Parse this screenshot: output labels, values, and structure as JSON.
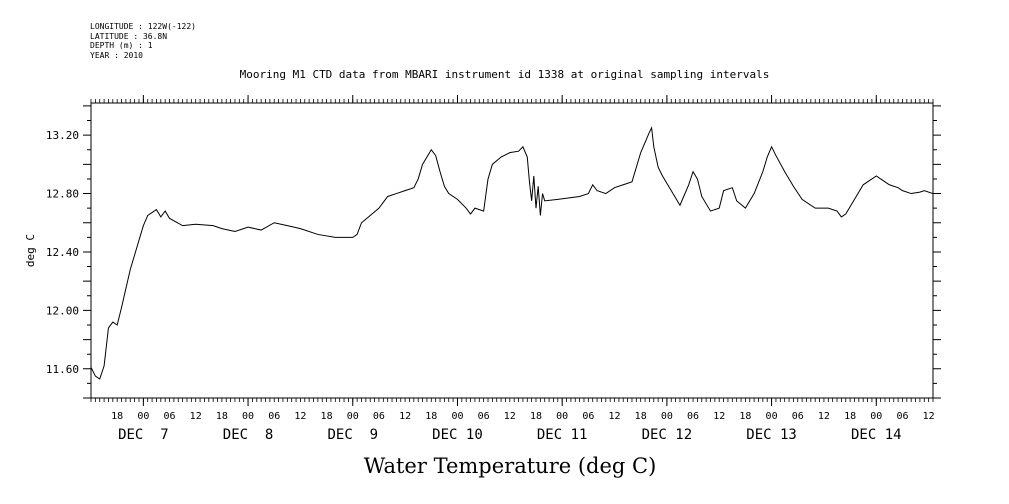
{
  "header": {
    "lines": [
      "LONGITUDE : 122W(-122)",
      "LATITUDE : 36.8N",
      "DEPTH (m) : 1",
      "YEAR : 2010"
    ]
  },
  "chart_data": {
    "type": "line",
    "title": "Mooring M1 CTD data from MBARI instrument id 1338 at original sampling intervals",
    "xlabel": "Water Temperature (deg C)",
    "ylabel": "deg C",
    "ylim": [
      11.4,
      13.42
    ],
    "xlim_hours_note_free": null,
    "y_ticks": [
      11.6,
      12.0,
      12.4,
      12.8,
      13.2
    ],
    "y_tick_labels": [
      "11.60",
      "12.00",
      "12.40",
      "12.80",
      "13.20"
    ],
    "x_hour_labels": [
      {
        "t": "2010-12-06T18:00",
        "label": "18"
      },
      {
        "t": "2010-12-07T00:00",
        "label": "00"
      },
      {
        "t": "2010-12-07T06:00",
        "label": "06"
      },
      {
        "t": "2010-12-07T12:00",
        "label": "12"
      },
      {
        "t": "2010-12-07T18:00",
        "label": "18"
      },
      {
        "t": "2010-12-08T00:00",
        "label": "00"
      },
      {
        "t": "2010-12-08T06:00",
        "label": "06"
      },
      {
        "t": "2010-12-08T12:00",
        "label": "12"
      },
      {
        "t": "2010-12-08T18:00",
        "label": "18"
      },
      {
        "t": "2010-12-09T00:00",
        "label": "00"
      },
      {
        "t": "2010-12-09T06:00",
        "label": "06"
      },
      {
        "t": "2010-12-09T12:00",
        "label": "12"
      },
      {
        "t": "2010-12-09T18:00",
        "label": "18"
      },
      {
        "t": "2010-12-10T00:00",
        "label": "00"
      },
      {
        "t": "2010-12-10T06:00",
        "label": "06"
      },
      {
        "t": "2010-12-10T12:00",
        "label": "12"
      },
      {
        "t": "2010-12-10T18:00",
        "label": "18"
      },
      {
        "t": "2010-12-11T00:00",
        "label": "00"
      },
      {
        "t": "2010-12-11T06:00",
        "label": "06"
      },
      {
        "t": "2010-12-11T12:00",
        "label": "12"
      },
      {
        "t": "2010-12-11T18:00",
        "label": "18"
      },
      {
        "t": "2010-12-12T00:00",
        "label": "00"
      },
      {
        "t": "2010-12-12T06:00",
        "label": "06"
      },
      {
        "t": "2010-12-12T12:00",
        "label": "12"
      },
      {
        "t": "2010-12-12T18:00",
        "label": "18"
      },
      {
        "t": "2010-12-13T00:00",
        "label": "00"
      },
      {
        "t": "2010-12-13T06:00",
        "label": "06"
      },
      {
        "t": "2010-12-13T12:00",
        "label": "12"
      },
      {
        "t": "2010-12-13T18:00",
        "label": "18"
      },
      {
        "t": "2010-12-14T00:00",
        "label": "00"
      },
      {
        "t": "2010-12-14T06:00",
        "label": "06"
      },
      {
        "t": "2010-12-14T12:00",
        "label": "12"
      }
    ],
    "x_day_labels": [
      {
        "t": "2010-12-07T00:00",
        "label": "DEC  7"
      },
      {
        "t": "2010-12-08T00:00",
        "label": "DEC  8"
      },
      {
        "t": "2010-12-09T00:00",
        "label": "DEC  9"
      },
      {
        "t": "2010-12-10T00:00",
        "label": "DEC 10"
      },
      {
        "t": "2010-12-11T00:00",
        "label": "DEC 11"
      },
      {
        "t": "2010-12-12T00:00",
        "label": "DEC 12"
      },
      {
        "t": "2010-12-13T00:00",
        "label": "DEC 13"
      },
      {
        "t": "2010-12-14T00:00",
        "label": "DEC 14"
      }
    ],
    "x_range": [
      "2010-12-06T12:00",
      "2010-12-14T13:00"
    ],
    "grid": false,
    "series": [
      {
        "points": [
          [
            "2010-12-06T12:00",
            11.61
          ],
          [
            "2010-12-06T13:00",
            11.55
          ],
          [
            "2010-12-06T14:00",
            11.53
          ],
          [
            "2010-12-06T15:00",
            11.62
          ],
          [
            "2010-12-06T16:00",
            11.88
          ],
          [
            "2010-12-06T17:00",
            11.92
          ],
          [
            "2010-12-06T18:00",
            11.9
          ],
          [
            "2010-12-06T19:00",
            12.02
          ],
          [
            "2010-12-06T20:00",
            12.15
          ],
          [
            "2010-12-06T21:00",
            12.28
          ],
          [
            "2010-12-06T22:00",
            12.38
          ],
          [
            "2010-12-06T23:00",
            12.48
          ],
          [
            "2010-12-07T00:00",
            12.58
          ],
          [
            "2010-12-07T01:00",
            12.65
          ],
          [
            "2010-12-07T03:00",
            12.69
          ],
          [
            "2010-12-07T04:00",
            12.64
          ],
          [
            "2010-12-07T05:00",
            12.68
          ],
          [
            "2010-12-07T06:00",
            12.63
          ],
          [
            "2010-12-07T09:00",
            12.58
          ],
          [
            "2010-12-07T12:00",
            12.59
          ],
          [
            "2010-12-07T16:00",
            12.58
          ],
          [
            "2010-12-07T18:00",
            12.56
          ],
          [
            "2010-12-07T21:00",
            12.54
          ],
          [
            "2010-12-08T00:00",
            12.57
          ],
          [
            "2010-12-08T03:00",
            12.55
          ],
          [
            "2010-12-08T06:00",
            12.6
          ],
          [
            "2010-12-08T09:00",
            12.58
          ],
          [
            "2010-12-08T12:00",
            12.56
          ],
          [
            "2010-12-08T16:00",
            12.52
          ],
          [
            "2010-12-08T20:00",
            12.5
          ],
          [
            "2010-12-09T00:00",
            12.5
          ],
          [
            "2010-12-09T01:00",
            12.52
          ],
          [
            "2010-12-09T02:00",
            12.6
          ],
          [
            "2010-12-09T04:00",
            12.65
          ],
          [
            "2010-12-09T06:00",
            12.7
          ],
          [
            "2010-12-09T08:00",
            12.78
          ],
          [
            "2010-12-09T10:00",
            12.8
          ],
          [
            "2010-12-09T12:00",
            12.82
          ],
          [
            "2010-12-09T14:00",
            12.84
          ],
          [
            "2010-12-09T15:00",
            12.9
          ],
          [
            "2010-12-09T16:00",
            13.0
          ],
          [
            "2010-12-09T17:00",
            13.05
          ],
          [
            "2010-12-09T18:00",
            13.1
          ],
          [
            "2010-12-09T19:00",
            13.06
          ],
          [
            "2010-12-09T20:00",
            12.95
          ],
          [
            "2010-12-09T21:00",
            12.85
          ],
          [
            "2010-12-09T22:00",
            12.8
          ],
          [
            "2010-12-10T00:00",
            12.76
          ],
          [
            "2010-12-10T02:00",
            12.7
          ],
          [
            "2010-12-10T03:00",
            12.66
          ],
          [
            "2010-12-10T04:00",
            12.7
          ],
          [
            "2010-12-10T06:00",
            12.68
          ],
          [
            "2010-12-10T07:00",
            12.9
          ],
          [
            "2010-12-10T08:00",
            13.0
          ],
          [
            "2010-12-10T10:00",
            13.05
          ],
          [
            "2010-12-10T12:00",
            13.08
          ],
          [
            "2010-12-10T14:00",
            13.09
          ],
          [
            "2010-12-10T15:00",
            13.12
          ],
          [
            "2010-12-10T16:00",
            13.05
          ],
          [
            "2010-12-10T16:30",
            12.88
          ],
          [
            "2010-12-10T17:00",
            12.75
          ],
          [
            "2010-12-10T17:30",
            12.92
          ],
          [
            "2010-12-10T18:00",
            12.7
          ],
          [
            "2010-12-10T18:30",
            12.85
          ],
          [
            "2010-12-10T19:00",
            12.65
          ],
          [
            "2010-12-10T19:30",
            12.8
          ],
          [
            "2010-12-10T20:00",
            12.75
          ],
          [
            "2010-12-10T23:00",
            12.76
          ],
          [
            "2010-12-11T04:00",
            12.78
          ],
          [
            "2010-12-11T06:00",
            12.8
          ],
          [
            "2010-12-11T07:00",
            12.86
          ],
          [
            "2010-12-11T08:00",
            12.82
          ],
          [
            "2010-12-11T10:00",
            12.8
          ],
          [
            "2010-12-11T12:00",
            12.84
          ],
          [
            "2010-12-11T14:00",
            12.86
          ],
          [
            "2010-12-11T16:00",
            12.88
          ],
          [
            "2010-12-11T17:00",
            12.98
          ],
          [
            "2010-12-11T18:00",
            13.08
          ],
          [
            "2010-12-11T19:00",
            13.15
          ],
          [
            "2010-12-11T20:00",
            13.22
          ],
          [
            "2010-12-11T20:30",
            13.25
          ],
          [
            "2010-12-11T21:00",
            13.12
          ],
          [
            "2010-12-11T22:00",
            12.98
          ],
          [
            "2010-12-11T23:00",
            12.92
          ],
          [
            "2010-12-12T01:00",
            12.82
          ],
          [
            "2010-12-12T03:00",
            12.72
          ],
          [
            "2010-12-12T05:00",
            12.86
          ],
          [
            "2010-12-12T06:00",
            12.95
          ],
          [
            "2010-12-12T07:00",
            12.9
          ],
          [
            "2010-12-12T08:00",
            12.78
          ],
          [
            "2010-12-12T10:00",
            12.68
          ],
          [
            "2010-12-12T12:00",
            12.7
          ],
          [
            "2010-12-12T13:00",
            12.82
          ],
          [
            "2010-12-12T15:00",
            12.84
          ],
          [
            "2010-12-12T16:00",
            12.75
          ],
          [
            "2010-12-12T18:00",
            12.7
          ],
          [
            "2010-12-12T20:00",
            12.8
          ],
          [
            "2010-12-12T22:00",
            12.95
          ],
          [
            "2010-12-12T23:00",
            13.05
          ],
          [
            "2010-12-13T00:00",
            13.12
          ],
          [
            "2010-12-13T01:00",
            13.06
          ],
          [
            "2010-12-13T03:00",
            12.95
          ],
          [
            "2010-12-13T05:00",
            12.85
          ],
          [
            "2010-12-13T07:00",
            12.76
          ],
          [
            "2010-12-13T10:00",
            12.7
          ],
          [
            "2010-12-13T13:00",
            12.7
          ],
          [
            "2010-12-13T15:00",
            12.68
          ],
          [
            "2010-12-13T16:00",
            12.64
          ],
          [
            "2010-12-13T17:00",
            12.66
          ],
          [
            "2010-12-13T19:00",
            12.76
          ],
          [
            "2010-12-13T21:00",
            12.86
          ],
          [
            "2010-12-14T00:00",
            12.92
          ],
          [
            "2010-12-14T01:00",
            12.9
          ],
          [
            "2010-12-14T03:00",
            12.86
          ],
          [
            "2010-12-14T05:00",
            12.84
          ],
          [
            "2010-12-14T06:00",
            12.82
          ],
          [
            "2010-12-14T08:00",
            12.8
          ],
          [
            "2010-12-14T10:00",
            12.81
          ],
          [
            "2010-12-14T11:00",
            12.82
          ],
          [
            "2010-12-14T13:00",
            12.8
          ]
        ]
      }
    ]
  }
}
